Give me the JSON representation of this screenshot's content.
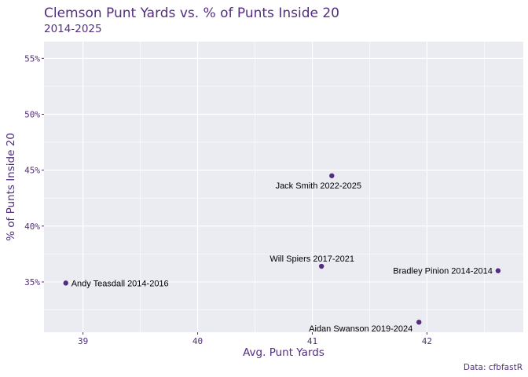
{
  "colors": {
    "accent": "#522d80",
    "panel_bg": "#ebebf2",
    "grid": "#ffffff",
    "label_text": "#000000"
  },
  "chart_data": {
    "type": "scatter",
    "title": "Clemson Punt Yards vs. % of Punts Inside 20",
    "subtitle": "2014-2025",
    "xlabel": "Avg. Punt Yards",
    "ylabel": "% of Punts Inside 20",
    "caption": "Data: cfbfastR",
    "xlim": [
      38.66,
      42.84
    ],
    "ylim": [
      30.5,
      56.5
    ],
    "x_ticks": [
      39,
      40,
      41,
      42
    ],
    "x_tick_labels": [
      "39",
      "40",
      "41",
      "42"
    ],
    "y_ticks": [
      35,
      40,
      45,
      50,
      55
    ],
    "y_tick_labels": [
      "35%",
      "40%",
      "45%",
      "50%",
      "55%"
    ],
    "grid": true,
    "legend": "none",
    "points": [
      {
        "label": "Andy Teasdall 2014-2016",
        "x": 38.85,
        "y": 34.9,
        "label_pos": "right"
      },
      {
        "label": "Will Spiers 2017-2021",
        "x": 41.08,
        "y": 36.4,
        "label_pos": "above"
      },
      {
        "label": "Jack Smith 2022-2025",
        "x": 41.17,
        "y": 44.5,
        "label_pos": "below"
      },
      {
        "label": "Aidan Swanson 2019-2024",
        "x": 41.93,
        "y": 31.4,
        "label_pos": "below-left"
      },
      {
        "label": "Bradley Pinion 2014-2014",
        "x": 42.62,
        "y": 36.0,
        "label_pos": "left"
      }
    ]
  }
}
